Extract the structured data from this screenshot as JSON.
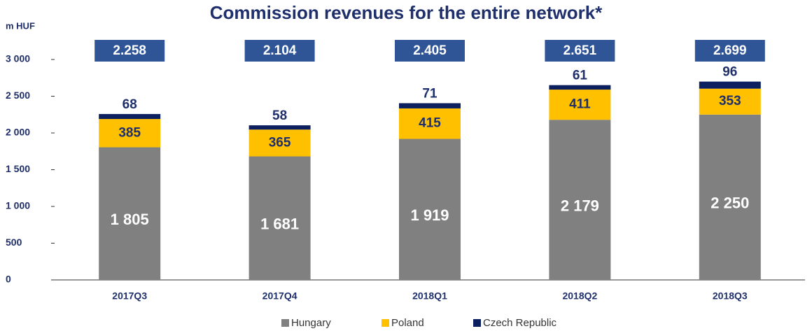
{
  "chart_data": {
    "type": "stacked_bar",
    "title": "Commission revenues for the entire network*",
    "y_axis_label": "m HUF",
    "categories": [
      "2017Q3",
      "2017Q4",
      "2018Q1",
      "2018Q2",
      "2018Q3"
    ],
    "series": [
      {
        "name": "Hungary",
        "color": "#808080",
        "values": [
          1805,
          1681,
          1919,
          2179,
          2250
        ],
        "value_labels": [
          "1 805",
          "1 681",
          "1 919",
          "2 179",
          "2 250"
        ]
      },
      {
        "name": "Poland",
        "color": "#ffc000",
        "values": [
          385,
          365,
          415,
          411,
          353
        ]
      },
      {
        "name": "Czech Republic",
        "color": "#0c1f5e",
        "values": [
          68,
          58,
          71,
          61,
          96
        ]
      }
    ],
    "totals": {
      "color": "#2f5597",
      "values": [
        2258,
        2104,
        2405,
        2651,
        2699
      ],
      "value_labels": [
        "2.258",
        "2.104",
        "2.405",
        "2.651",
        "2.699"
      ]
    },
    "ylim": [
      0,
      3000
    ],
    "yticks": [
      0,
      500,
      {
        "value": 1000,
        "label": "1 000"
      },
      {
        "value": 1500,
        "label": "1 500"
      },
      {
        "value": 2000,
        "label": "2 000"
      },
      {
        "value": 2500,
        "label": "2 500"
      },
      {
        "value": 3000,
        "label": "3 000"
      }
    ],
    "grid": false,
    "legend": "bottom"
  }
}
